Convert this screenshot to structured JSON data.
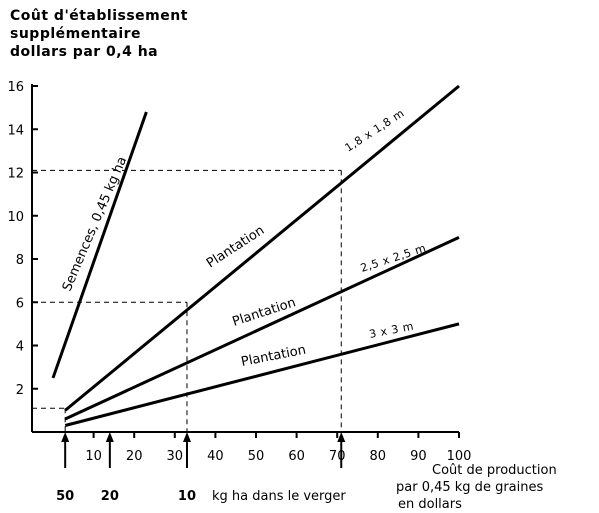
{
  "chart_data": {
    "type": "line",
    "title_lines": [
      "Coût d'établissement",
      "supplémentaire",
      "dollars par 0,4 ha"
    ],
    "xlabel_lines": [
      "Coût de production",
      "par 0,45 kg de graines",
      "en dollars"
    ],
    "secondary_axis_label": "kg ha dans le verger",
    "xlim": [
      0,
      100
    ],
    "ylim": [
      0,
      16
    ],
    "x_ticks": [
      10,
      20,
      30,
      40,
      50,
      60,
      70,
      80,
      90,
      100
    ],
    "y_ticks": [
      2,
      4,
      6,
      8,
      10,
      12,
      14,
      16
    ],
    "series": [
      {
        "name": "Semences, 0,45 kg ha",
        "x": [
          0,
          23
        ],
        "y": [
          2.5,
          14.8
        ]
      },
      {
        "name": "Plantation",
        "dimension": "1,8 x 1,8 m",
        "x": [
          3,
          100
        ],
        "y": [
          1.0,
          16.0
        ]
      },
      {
        "name": "Plantation",
        "dimension": "2,5 x 2,5 m",
        "x": [
          3,
          100
        ],
        "y": [
          0.6,
          9.0
        ]
      },
      {
        "name": "Plantation",
        "dimension": "3 x 3 m",
        "x": [
          3,
          100
        ],
        "y": [
          0.3,
          5.0
        ]
      }
    ],
    "secondary_markers": [
      {
        "label": "50",
        "x": 3
      },
      {
        "label": "20",
        "x": 14
      },
      {
        "label": "10",
        "x": 33
      },
      {
        "label": "",
        "x": 71
      }
    ],
    "reference_lines": [
      {
        "x": 33,
        "y": 6
      },
      {
        "x": 71,
        "y": 12.1
      },
      {
        "x": 3,
        "y": 1.1
      }
    ],
    "grid": false
  }
}
